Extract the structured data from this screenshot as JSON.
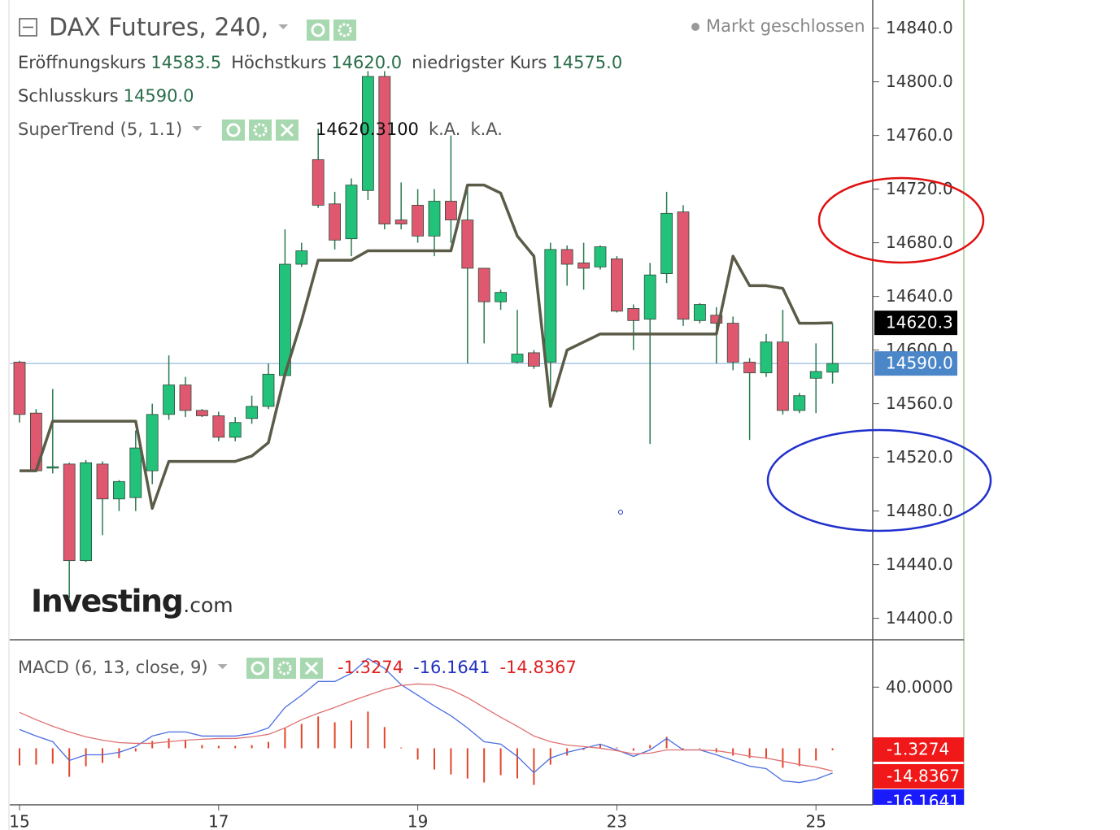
{
  "chart_data": [
    {
      "type": "candlestick",
      "title": "DAX Futures, 240,",
      "status": "Markt geschlossen",
      "ohlc_legend": [
        [
          "Eröffnungskurs",
          "14583.5"
        ],
        [
          "Höchstkurs",
          "14620.0"
        ],
        [
          "niedrigster Kurs",
          "14575.0"
        ],
        [
          "Schlusskurs",
          "14590.0"
        ]
      ],
      "categories": [
        "15",
        null,
        null,
        null,
        null,
        null,
        null,
        null,
        null,
        null,
        null,
        null,
        "17",
        null,
        null,
        null,
        null,
        null,
        null,
        null,
        null,
        null,
        null,
        null,
        "19",
        null,
        null,
        null,
        null,
        null,
        null,
        null,
        null,
        null,
        null,
        null,
        "23",
        null,
        null,
        null,
        null,
        null,
        null,
        null,
        null,
        null,
        null,
        null,
        "25",
        null
      ],
      "open": [
        14591,
        14553,
        14512,
        14515,
        14443,
        14515,
        14489,
        14490,
        14510,
        14552,
        14574,
        14555,
        14551,
        14535,
        14549,
        14558,
        14581,
        14664,
        14742,
        14709,
        14683,
        14719,
        14804,
        14697,
        14708,
        14685,
        14711,
        14697,
        14661,
        14636,
        14591,
        14598,
        14591,
        14675,
        14665,
        14662,
        14668,
        14631,
        14623,
        14657,
        14703,
        14622,
        14626,
        14620,
        14591,
        14583,
        14606,
        14555,
        14579,
        14583.5
      ],
      "high": [
        14592,
        14556,
        14571,
        14516,
        14518,
        14517,
        14503,
        14540,
        14560,
        14596,
        14580,
        14556,
        14554,
        14550,
        14566,
        14590,
        14690,
        14680,
        14765,
        14718,
        14728,
        14808,
        14808,
        14725,
        14720,
        14720,
        14760,
        14720,
        14661,
        14645,
        14630,
        14600,
        14680,
        14678,
        14680,
        14678,
        14670,
        14634,
        14665,
        14718,
        14708,
        14635,
        14632,
        14625,
        14594,
        14612,
        14630,
        14568,
        14605,
        14620
      ],
      "low": [
        14546,
        14509,
        14508,
        14415,
        14442,
        14462,
        14480,
        14480,
        14500,
        14548,
        14550,
        14550,
        14532,
        14532,
        14545,
        14556,
        14580,
        14662,
        14706,
        14675,
        14670,
        14712,
        14690,
        14690,
        14680,
        14670,
        14680,
        14590,
        14605,
        14630,
        14590,
        14586,
        14565,
        14648,
        14645,
        14660,
        14628,
        14600,
        14530,
        14650,
        14618,
        14620,
        14590,
        14585,
        14533,
        14580,
        14552,
        14553,
        14553,
        14575
      ],
      "close": [
        14552,
        14510,
        14513,
        14443,
        14516,
        14489,
        14502,
        14527,
        14552,
        14574,
        14555,
        14551,
        14535,
        14546,
        14558,
        14582,
        14664,
        14674,
        14708,
        14682,
        14723,
        14804,
        14694,
        14694,
        14685,
        14711,
        14697,
        14661,
        14636,
        14643,
        14597,
        14588,
        14675,
        14664,
        14661,
        14677,
        14629,
        14622,
        14656,
        14702,
        14623,
        14634,
        14620,
        14591,
        14583,
        14606,
        14555,
        14566,
        14584,
        14590
      ],
      "up_color": "#22c27a",
      "down_color": "#e0586f",
      "indicator": {
        "name": "SuperTrend (5, 1.1)",
        "color": "#5b5b48",
        "legend_values": [
          "14620.3100",
          "k.A.",
          "k.A."
        ],
        "values": [
          14510,
          14510,
          14547,
          14547,
          14547,
          14547,
          14547,
          14547,
          14482,
          14517,
          14517,
          14517,
          14517,
          14517,
          14521,
          14531,
          14582,
          14622,
          14667,
          14667,
          14667,
          14674,
          14674,
          14674,
          14674,
          14674,
          14674,
          14723,
          14723,
          14717,
          14685,
          14670,
          14558,
          14600,
          14606,
          14612,
          14612,
          14612,
          14612,
          14612,
          14612,
          14612,
          14612,
          14670,
          14648,
          14648,
          14646,
          14620,
          14620,
          14620.31
        ]
      },
      "price_lines": [
        {
          "value": 14620.3,
          "label": "14620.3",
          "color": "#000000",
          "line": false
        },
        {
          "value": 14590,
          "label": "14590.0",
          "color": "#4a86c8",
          "line": true
        }
      ],
      "ylim": [
        14384,
        14861
      ],
      "yticks": [
        {
          "value": 14400,
          "label": "14400.0"
        },
        {
          "value": 14440,
          "label": "14440.0"
        },
        {
          "value": 14480,
          "label": "14480.0"
        },
        {
          "value": 14520,
          "label": "14520.0"
        },
        {
          "value": 14560,
          "label": "14560.0"
        },
        {
          "value": 14600,
          "label": "14600.0"
        },
        {
          "value": 14640,
          "label": "14640.0"
        },
        {
          "value": 14680,
          "label": "14680.0"
        },
        {
          "value": 14720,
          "label": "14720.0"
        },
        {
          "value": 14760,
          "label": "14760.0"
        },
        {
          "value": 14800,
          "label": "14800.0"
        },
        {
          "value": 14840,
          "label": "14840.0"
        }
      ],
      "logo": [
        "Investing",
        ".com"
      ]
    },
    {
      "type": "macd",
      "title": "MACD (6, 13, close, 9)",
      "legend_values": [
        {
          "label": "-1.3274",
          "color": "#e02020"
        },
        {
          "label": "-16.1641",
          "color": "#2030c0"
        },
        {
          "label": "-14.8367",
          "color": "#e02020"
        }
      ],
      "series": [
        {
          "color": "#4a6ee0",
          "values": [
            12.3,
            8.0,
            4.3,
            -8.0,
            -4.3,
            -4.3,
            -2.7,
            1.1,
            8.0,
            10.7,
            10.7,
            8.0,
            8.0,
            8.0,
            9.6,
            13.3,
            26.7,
            34.7,
            43.7,
            43.7,
            49.1,
            58.7,
            52.3,
            41.6,
            34.7,
            27.7,
            21.3,
            13.3,
            4.3,
            2.7,
            -5.3,
            -16.0,
            -6.4,
            -2.7,
            0,
            2.7,
            -1.1,
            -5.3,
            -1.1,
            6.4,
            -1.1,
            -1.1,
            -4.3,
            -8.0,
            -11.7,
            -13.3,
            -21.3,
            -22.4,
            -20.3,
            -16.1641
          ]
        },
        {
          "color": "#e07070",
          "values": [
            23.5,
            18.7,
            14.4,
            10.7,
            7.5,
            5.3,
            3.7,
            3.2,
            3.2,
            4.3,
            5.3,
            5.9,
            6.4,
            6.4,
            7.5,
            9.1,
            13.3,
            18.7,
            22.9,
            26.7,
            30.9,
            34.7,
            38.4,
            41.1,
            42.1,
            41.6,
            38.4,
            33.1,
            26.7,
            20.3,
            14.4,
            8.0,
            4.3,
            2.1,
            1.1,
            0,
            -1.6,
            -3.7,
            -3.2,
            -1.1,
            -1.1,
            -1.1,
            -1.6,
            -3.2,
            -5.3,
            -6.4,
            -8.5,
            -10.7,
            -12.3,
            -14.8367
          ]
        }
      ],
      "histogram": {
        "color": "#e2452a",
        "values": [
          -11.2,
          -10.7,
          -10.1,
          -18.7,
          -11.8,
          -9.6,
          -6.4,
          -2.1,
          4.8,
          6.4,
          5.4,
          2.1,
          1.6,
          1.6,
          2.1,
          4.2,
          13.4,
          16.0,
          20.8,
          17.0,
          18.2,
          24.0,
          13.9,
          0.5,
          -7.4,
          -13.9,
          -17.1,
          -19.8,
          -22.4,
          -17.6,
          -19.7,
          -24.0,
          -10.7,
          -4.8,
          -1.1,
          2.7,
          0.5,
          -1.6,
          2.1,
          7.5,
          0,
          0,
          -2.7,
          -4.8,
          -6.4,
          -6.9,
          -12.8,
          -11.7,
          -8.0,
          -1.3274
        ]
      },
      "ylim": [
        -37,
        71
      ],
      "yticks": [
        {
          "value": 40,
          "label": "40.0000"
        }
      ]
    }
  ]
}
